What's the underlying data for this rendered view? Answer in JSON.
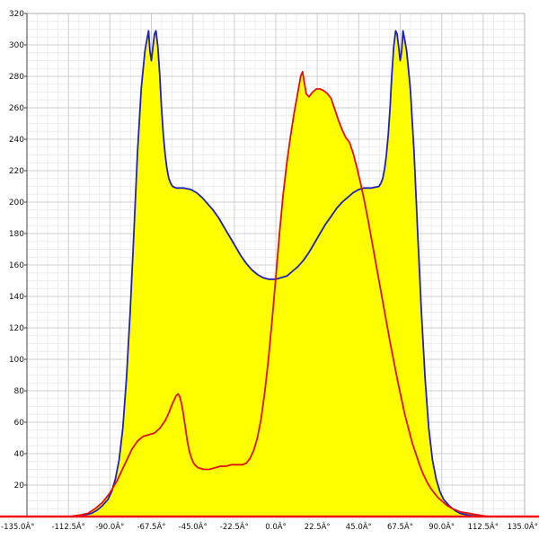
{
  "chart_style": {
    "background": "#ffffff",
    "grid_minor_color": "#ececec",
    "grid_major_color": "#cfcfcf",
    "frame_color": "#b0b0b0",
    "y_axis_color": "#444444",
    "x_axis_color": "#ee1111",
    "fill_color": "#ffff00",
    "blue_color": "#2020c0",
    "red_color": "#dd1111",
    "label_color": "#111111"
  },
  "chart_data": {
    "type": "area",
    "title": "",
    "xlabel": "",
    "ylabel": "",
    "xlim": [
      -135,
      135
    ],
    "ylim": [
      0,
      320
    ],
    "x_major_step": 22.5,
    "x_minor_step": 5.625,
    "y_major_step": 20,
    "y_minor_step": 5,
    "grid": "on",
    "legend": "none",
    "fill_rule": "yellow fill under union (max) of both series",
    "x_tick_values": [
      -135,
      -112.5,
      -90,
      -67.5,
      -45,
      -22.5,
      0,
      22.5,
      45,
      67.5,
      90,
      112.5,
      135
    ],
    "x_tick_labels": [
      "-135.0Â°",
      "-112.5Â°",
      "-90.0Â°",
      "-67.5Â°",
      "-45.0Â°",
      "-22.5Â°",
      "0.0Â°",
      "22.5Â°",
      "45.0Â°",
      "67.5Â°",
      "90.0Â°",
      "112.5Â°",
      "135.0Â°"
    ],
    "y_tick_values": [
      20,
      40,
      60,
      80,
      100,
      120,
      140,
      160,
      180,
      200,
      220,
      240,
      260,
      280,
      300,
      320
    ],
    "series": [
      {
        "name": "blue_curve",
        "color": "#2020c0",
        "points": [
          [
            -135,
            0
          ],
          [
            -110,
            0
          ],
          [
            -104,
            1
          ],
          [
            -100,
            2
          ],
          [
            -97,
            4
          ],
          [
            -94,
            7
          ],
          [
            -91,
            11
          ],
          [
            -89,
            16
          ],
          [
            -87,
            24
          ],
          [
            -85,
            36
          ],
          [
            -83,
            56
          ],
          [
            -81,
            88
          ],
          [
            -79,
            130
          ],
          [
            -77,
            180
          ],
          [
            -75,
            232
          ],
          [
            -73,
            272
          ],
          [
            -71,
            296
          ],
          [
            -70,
            303
          ],
          [
            -69,
            309
          ],
          [
            -68.3,
            296
          ],
          [
            -67.5,
            290
          ],
          [
            -66.7,
            298
          ],
          [
            -65.8,
            307
          ],
          [
            -65,
            309
          ],
          [
            -64,
            299
          ],
          [
            -63,
            282
          ],
          [
            -62,
            260
          ],
          [
            -61,
            243
          ],
          [
            -60,
            230
          ],
          [
            -59,
            221
          ],
          [
            -58,
            215
          ],
          [
            -57,
            212
          ],
          [
            -56,
            210
          ],
          [
            -54,
            209
          ],
          [
            -50,
            209
          ],
          [
            -46,
            208
          ],
          [
            -43,
            206
          ],
          [
            -40,
            203
          ],
          [
            -37,
            199
          ],
          [
            -34,
            195
          ],
          [
            -31,
            190
          ],
          [
            -28,
            184
          ],
          [
            -25,
            178
          ],
          [
            -22,
            172
          ],
          [
            -19,
            166
          ],
          [
            -16,
            161
          ],
          [
            -13,
            157
          ],
          [
            -10,
            154
          ],
          [
            -7,
            152
          ],
          [
            -4,
            151
          ],
          [
            0,
            151
          ],
          [
            3,
            152
          ],
          [
            6,
            153
          ],
          [
            9,
            156
          ],
          [
            12,
            159
          ],
          [
            15,
            163
          ],
          [
            18,
            168
          ],
          [
            21,
            174
          ],
          [
            24,
            180
          ],
          [
            27,
            186
          ],
          [
            30,
            191
          ],
          [
            33,
            196
          ],
          [
            36,
            200
          ],
          [
            39,
            203
          ],
          [
            42,
            206
          ],
          [
            45,
            208
          ],
          [
            48,
            209
          ],
          [
            52,
            209
          ],
          [
            56,
            210
          ],
          [
            57,
            212
          ],
          [
            58,
            215
          ],
          [
            59,
            221
          ],
          [
            60,
            230
          ],
          [
            61,
            243
          ],
          [
            62,
            260
          ],
          [
            63,
            282
          ],
          [
            64,
            299
          ],
          [
            65,
            309
          ],
          [
            65.8,
            307
          ],
          [
            66.7,
            298
          ],
          [
            67.5,
            290
          ],
          [
            68.3,
            296
          ],
          [
            69,
            309
          ],
          [
            70,
            303
          ],
          [
            71,
            296
          ],
          [
            73,
            272
          ],
          [
            75,
            232
          ],
          [
            77,
            180
          ],
          [
            79,
            130
          ],
          [
            81,
            88
          ],
          [
            83,
            56
          ],
          [
            85,
            36
          ],
          [
            87,
            24
          ],
          [
            89,
            16
          ],
          [
            91,
            11
          ],
          [
            94,
            7
          ],
          [
            97,
            4
          ],
          [
            100,
            2
          ],
          [
            104,
            1
          ],
          [
            110,
            0
          ],
          [
            135,
            0
          ]
        ]
      },
      {
        "name": "red_curve",
        "color": "#dd1111",
        "points": [
          [
            -135,
            0
          ],
          [
            -112,
            0
          ],
          [
            -106,
            1
          ],
          [
            -102,
            2
          ],
          [
            -98,
            5
          ],
          [
            -94,
            9
          ],
          [
            -90,
            15
          ],
          [
            -86,
            23
          ],
          [
            -82,
            33
          ],
          [
            -78,
            43
          ],
          [
            -75,
            48
          ],
          [
            -72,
            51
          ],
          [
            -69,
            52
          ],
          [
            -66,
            53
          ],
          [
            -63,
            56
          ],
          [
            -60,
            61
          ],
          [
            -58,
            66
          ],
          [
            -56,
            72
          ],
          [
            -54,
            77
          ],
          [
            -53,
            78
          ],
          [
            -52,
            76
          ],
          [
            -51,
            71
          ],
          [
            -50,
            64
          ],
          [
            -49,
            56
          ],
          [
            -48,
            48
          ],
          [
            -47,
            42
          ],
          [
            -46,
            38
          ],
          [
            -45,
            35
          ],
          [
            -44,
            33
          ],
          [
            -42,
            31
          ],
          [
            -39,
            30
          ],
          [
            -36,
            30
          ],
          [
            -33,
            31
          ],
          [
            -30,
            32
          ],
          [
            -27,
            32
          ],
          [
            -24,
            33
          ],
          [
            -21,
            33
          ],
          [
            -18,
            33
          ],
          [
            -16,
            34
          ],
          [
            -14,
            37
          ],
          [
            -12,
            42
          ],
          [
            -10,
            50
          ],
          [
            -8,
            62
          ],
          [
            -6,
            79
          ],
          [
            -4,
            100
          ],
          [
            -2,
            125
          ],
          [
            0,
            152
          ],
          [
            2,
            180
          ],
          [
            4,
            205
          ],
          [
            6,
            225
          ],
          [
            8,
            242
          ],
          [
            10,
            257
          ],
          [
            12,
            270
          ],
          [
            13.5,
            280
          ],
          [
            14.5,
            283
          ],
          [
            15.5,
            276
          ],
          [
            16.5,
            269
          ],
          [
            18,
            267
          ],
          [
            20,
            270
          ],
          [
            22,
            272
          ],
          [
            24,
            272
          ],
          [
            26,
            271
          ],
          [
            28,
            269
          ],
          [
            30,
            266
          ],
          [
            32,
            259
          ],
          [
            34,
            252
          ],
          [
            36,
            246
          ],
          [
            38,
            241
          ],
          [
            40,
            238
          ],
          [
            42,
            231
          ],
          [
            44,
            222
          ],
          [
            46,
            212
          ],
          [
            48,
            201
          ],
          [
            50,
            189
          ],
          [
            52,
            176
          ],
          [
            54,
            163
          ],
          [
            56,
            150
          ],
          [
            58,
            137
          ],
          [
            60,
            124
          ],
          [
            62,
            111
          ],
          [
            64,
            99
          ],
          [
            66,
            87
          ],
          [
            68,
            76
          ],
          [
            70,
            65
          ],
          [
            72,
            56
          ],
          [
            74,
            47
          ],
          [
            76,
            40
          ],
          [
            78,
            33
          ],
          [
            80,
            27
          ],
          [
            82,
            22
          ],
          [
            84,
            18
          ],
          [
            86,
            15
          ],
          [
            88,
            12
          ],
          [
            90,
            10
          ],
          [
            93,
            7
          ],
          [
            96,
            5
          ],
          [
            100,
            3
          ],
          [
            105,
            2
          ],
          [
            110,
            1
          ],
          [
            115,
            0
          ],
          [
            135,
            0
          ]
        ]
      }
    ]
  }
}
